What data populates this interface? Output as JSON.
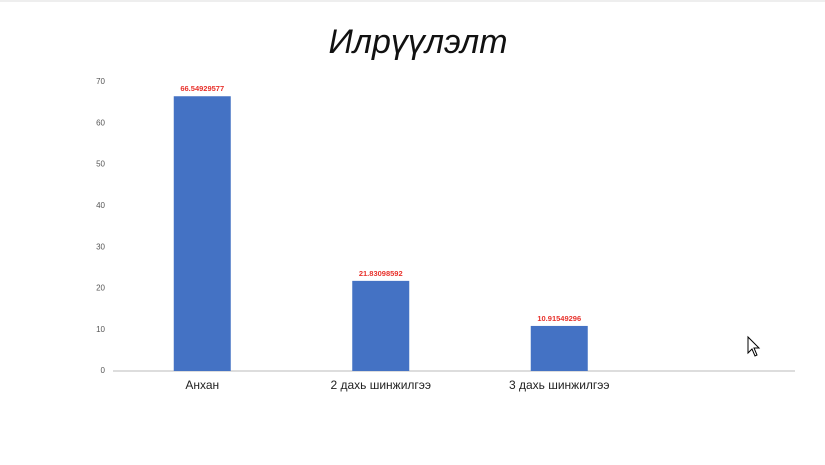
{
  "chart_data": {
    "type": "bar",
    "title": "Илрүүлэлт",
    "categories": [
      "Анхан",
      "2 дахь шинжилгээ",
      "3 дахь шинжилгээ"
    ],
    "values": [
      66.54929577,
      21.83098592,
      10.91549296
    ],
    "color": "#4472c4",
    "value_label_color": "#e8312b",
    "ylim": [
      0,
      70
    ],
    "yticks": [
      0,
      10,
      20,
      30,
      40,
      50,
      60,
      70
    ],
    "grid": false
  }
}
